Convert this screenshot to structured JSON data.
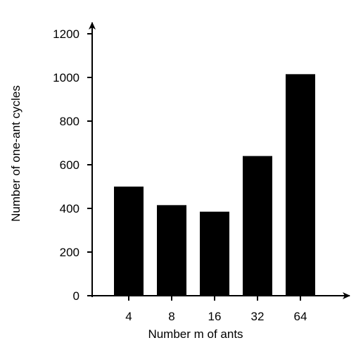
{
  "chart_data": {
    "type": "bar",
    "title": "",
    "xlabel": "Number m of ants",
    "ylabel": "Number of one-ant cycles",
    "categories": [
      "4",
      "8",
      "16",
      "32",
      "64"
    ],
    "values": [
      500,
      415,
      385,
      640,
      1015
    ],
    "ylim": [
      0,
      1200
    ],
    "yticks": [
      0,
      200,
      400,
      600,
      800,
      1000,
      1200
    ],
    "grid": false,
    "legend": "none",
    "bar_color": "#000000"
  }
}
